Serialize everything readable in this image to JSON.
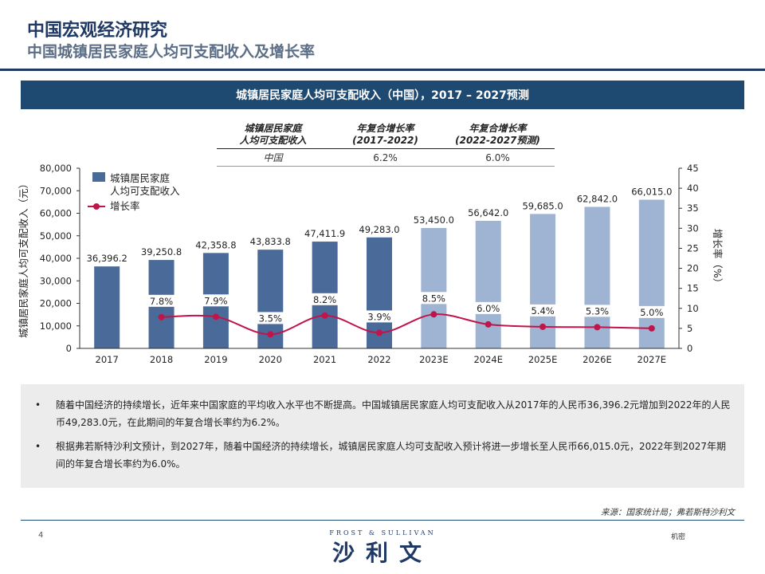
{
  "header": {
    "title": "中国宏观经济研究",
    "subtitle": "中国城镇居民家庭人均可支配收入及增长率"
  },
  "banner": {
    "title": "城镇居民家庭人均可支配收入（中国），2017 – 2027预测"
  },
  "cagr_table": {
    "col1_header": "城镇居民家庭\n人均可支配收入",
    "col2_header": "年复合增长率\n(2017-2022)",
    "col3_header": "年复合增长率\n(2022-2027预测)",
    "row_label": "中国",
    "cagr_hist": "6.2%",
    "cagr_fcst": "6.0%"
  },
  "chart_data": {
    "type": "bar",
    "categories": [
      "2017",
      "2018",
      "2019",
      "2020",
      "2021",
      "2022",
      "2023E",
      "2024E",
      "2025E",
      "2026E",
      "2027E"
    ],
    "series": [
      {
        "name": "城镇居民家庭人均可支配收入",
        "type": "bar",
        "axis": "left",
        "values": [
          36396.2,
          39250.8,
          42358.8,
          43833.8,
          47411.9,
          49283.0,
          53450.0,
          56642.0,
          59685.0,
          62842.0,
          66015.0
        ],
        "labels": [
          "36,396.2",
          "39,250.8",
          "42,358.8",
          "43,833.8",
          "47,411.9",
          "49,283.0",
          "53,450.0",
          "56,642.0",
          "59,685.0",
          "62,842.0",
          "66,015.0"
        ]
      },
      {
        "name": "增长率",
        "type": "line",
        "axis": "right",
        "values": [
          null,
          7.8,
          7.9,
          3.5,
          8.2,
          3.9,
          8.5,
          6.0,
          5.4,
          5.3,
          5.0
        ],
        "labels": [
          "",
          "7.8%",
          "7.9%",
          "3.5%",
          "8.2%",
          "3.9%",
          "8.5%",
          "6.0%",
          "5.4%",
          "5.3%",
          "5.0%"
        ]
      }
    ],
    "legend": [
      "城镇居民家庭\n人均可支配收入",
      "增长率"
    ],
    "legend_position": "top-left",
    "ylabel": "城镇居民家庭人均可支配收入（元）",
    "y2label": "增长率（%）",
    "ylim": [
      0,
      80000
    ],
    "y2lim": [
      0,
      45
    ],
    "yticks": [
      "0",
      "10,000",
      "20,000",
      "30,000",
      "40,000",
      "50,000",
      "60,000",
      "70,000",
      "80,000"
    ],
    "y2ticks": [
      "0",
      "5",
      "10",
      "15",
      "20",
      "25",
      "30",
      "35",
      "40",
      "45"
    ],
    "forecast_start_index": 6,
    "colors": {
      "bar_actual": "#4a6a99",
      "bar_forecast": "#9fb3d3",
      "line": "#c0154a"
    }
  },
  "notes": [
    {
      "bullet": "•",
      "text": "随着中国经济的持续增长，近年来中国家庭的平均收入水平也不断提高。中国城镇居民家庭人均可支配收入从2017年的人民币36,396.2元增加到2022年的人民币49,283.0元，在此期间的年复合增长率约为6.2%。"
    },
    {
      "bullet": "•",
      "text": "根据弗若斯特沙利文预计，到2027年，随着中国经济的持续增长，城镇居民家庭人均可支配收入预计将进一步增长至人民币66,015.0元，2022年到2027年期间的年复合增长率约为6.0%。"
    }
  ],
  "footer": {
    "source": "来源：国家统计局；弗若斯特沙利文",
    "page": "4",
    "logo_top": "FROST & SULLIVAN",
    "logo_cn": "沙利文",
    "confidential": "机密"
  }
}
